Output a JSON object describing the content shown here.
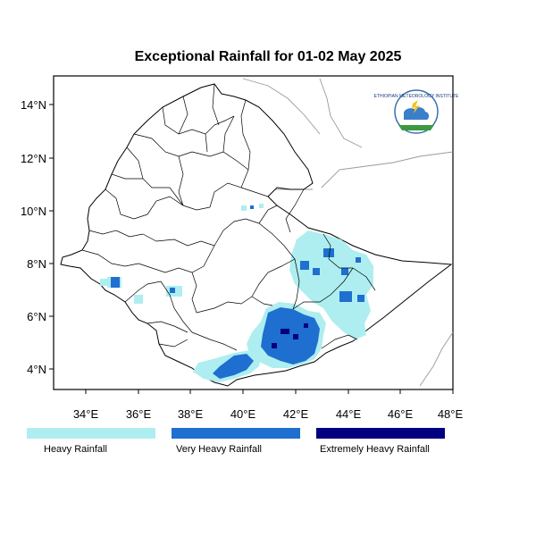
{
  "title": "Exceptional Rainfall for 01-02 May 2025",
  "axes": {
    "x_ticks": [
      "34°E",
      "36°E",
      "38°E",
      "40°E",
      "42°E",
      "44°E",
      "46°E",
      "48°E"
    ],
    "y_ticks": [
      "4°N",
      "6°N",
      "8°N",
      "10°N",
      "12°N",
      "14°N"
    ]
  },
  "legend": [
    {
      "label": "Heavy Rainfall",
      "color": "#aeeef0"
    },
    {
      "label": "Very Heavy Rainfall",
      "color": "#1e6fd0"
    },
    {
      "label": "Extremely Heavy Rainfall",
      "color": "#000080"
    }
  ],
  "logo": {
    "icon": "meteorology-institute-logo-icon",
    "text": "ETHIOPIAN METEOROLOGY INSTITUTE"
  },
  "colors": {
    "border": "#000000",
    "neighbor_border": "#9a9a9a"
  }
}
